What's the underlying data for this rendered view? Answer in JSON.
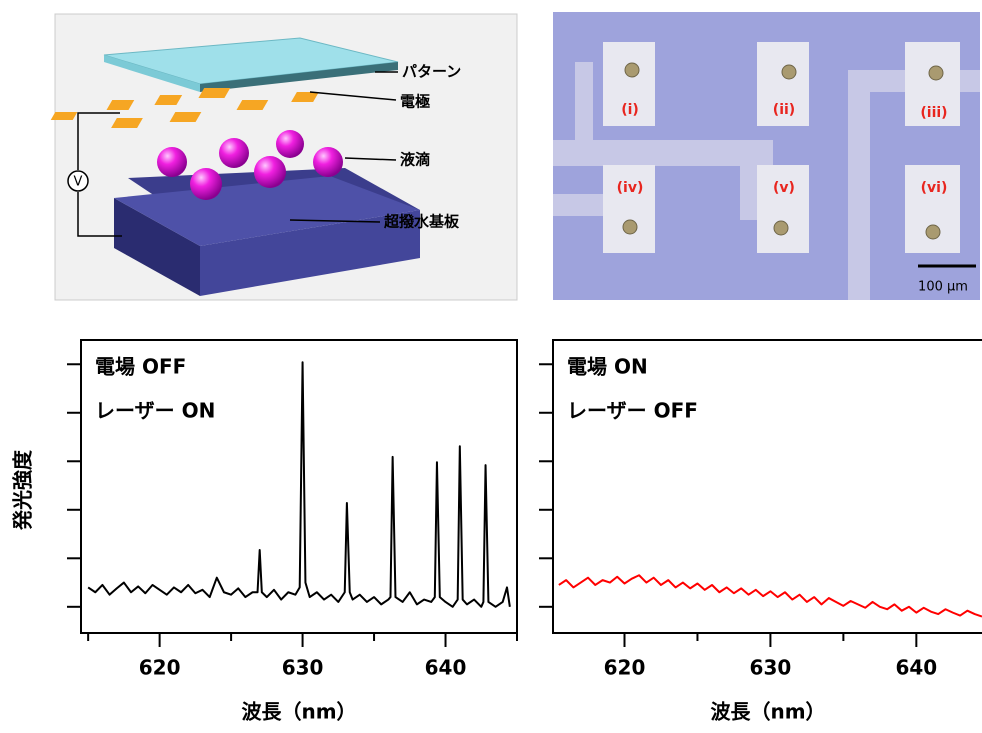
{
  "diagram": {
    "labels": [
      "パターン",
      "電極",
      "液滴",
      "超撥水基板"
    ],
    "voltage": "V"
  },
  "micrograph": {
    "spots": [
      "(i)",
      "(ii)",
      "(iii)",
      "(iv)",
      "(v)",
      "(vi)"
    ],
    "scale_bar": "100 μm"
  },
  "chart_data": [
    {
      "type": "line",
      "annotations": [
        "電場 OFF",
        "レーザー ON"
      ],
      "ylabel": "発光強度",
      "xlabel": "波長（nm）",
      "xlim": [
        614.5,
        645
      ],
      "xticks": [
        620,
        630,
        640
      ],
      "xminorticks": [
        615,
        625,
        635,
        645
      ],
      "ylim": [
        0.46,
        6.5
      ],
      "yticks": [
        1,
        2,
        3,
        4,
        5,
        6
      ],
      "x": [
        615,
        615.5,
        616,
        616.5,
        617,
        617.5,
        618,
        618.5,
        619,
        619.5,
        620,
        620.5,
        621,
        621.5,
        622,
        622.5,
        623,
        623.5,
        624,
        624.5,
        625,
        625.5,
        626,
        626.5,
        626.85,
        627,
        627.15,
        627.5,
        628,
        628.5,
        629,
        629.5,
        629.8,
        630,
        630.2,
        630.5,
        631,
        631.5,
        632,
        632.5,
        632.95,
        633.1,
        633.3,
        633.5,
        634,
        634.5,
        635,
        635.5,
        636,
        636.15,
        636.3,
        636.5,
        637,
        637.5,
        638,
        638.5,
        639,
        639.25,
        639.4,
        639.6,
        640,
        640.5,
        640.85,
        641,
        641.2,
        641.5,
        642,
        642.5,
        642.65,
        642.8,
        643,
        643.5,
        644,
        644.3,
        644.5
      ],
      "series": [
        {
          "color": "#000000",
          "values": [
            1.4,
            1.3,
            1.45,
            1.25,
            1.38,
            1.5,
            1.3,
            1.42,
            1.28,
            1.45,
            1.35,
            1.25,
            1.4,
            1.3,
            1.45,
            1.28,
            1.35,
            1.2,
            1.6,
            1.3,
            1.25,
            1.38,
            1.2,
            1.3,
            1.3,
            2.17,
            1.3,
            1.2,
            1.35,
            1.15,
            1.3,
            1.25,
            1.4,
            6.04,
            1.5,
            1.2,
            1.3,
            1.15,
            1.25,
            1.1,
            1.3,
            3.14,
            1.3,
            1.15,
            1.25,
            1.1,
            1.2,
            1.05,
            1.15,
            1.2,
            4.09,
            1.2,
            1.1,
            1.3,
            1.05,
            1.15,
            1.1,
            1.2,
            3.98,
            1.2,
            1.1,
            1.0,
            1.15,
            4.31,
            1.15,
            1.05,
            1.15,
            1.0,
            1.1,
            3.92,
            1.1,
            1.0,
            1.1,
            1.4,
            1.0
          ]
        }
      ]
    },
    {
      "type": "line",
      "annotations": [
        "電場 ON",
        "レーザー OFF"
      ],
      "xlabel": "波長（nm）",
      "xlim": [
        615.1,
        644.5
      ],
      "xticks": [
        620,
        630,
        640
      ],
      "xminorticks": [
        625,
        635
      ],
      "ylim": [
        0.46,
        6.5
      ],
      "yticks": [
        1,
        2,
        3,
        4,
        5,
        6
      ],
      "x": [
        615.5,
        616,
        616.5,
        617,
        617.5,
        618,
        618.5,
        619,
        619.5,
        620,
        620.5,
        621,
        621.5,
        622,
        622.5,
        623,
        623.5,
        624,
        624.5,
        625,
        625.5,
        626,
        626.5,
        627,
        627.5,
        628,
        628.5,
        629,
        629.5,
        630,
        630.5,
        631,
        631.5,
        632,
        632.5,
        633,
        633.5,
        634,
        634.5,
        635,
        635.5,
        636,
        636.5,
        637,
        637.5,
        638,
        638.5,
        639,
        639.5,
        640,
        640.5,
        641,
        641.5,
        642,
        642.5,
        643,
        643.5,
        644,
        644.5
      ],
      "series": [
        {
          "color": "#ff0000",
          "values": [
            1.45,
            1.55,
            1.4,
            1.5,
            1.6,
            1.45,
            1.55,
            1.5,
            1.62,
            1.48,
            1.58,
            1.65,
            1.5,
            1.6,
            1.45,
            1.55,
            1.4,
            1.5,
            1.38,
            1.48,
            1.35,
            1.45,
            1.3,
            1.4,
            1.28,
            1.38,
            1.25,
            1.35,
            1.22,
            1.32,
            1.2,
            1.3,
            1.15,
            1.25,
            1.1,
            1.2,
            1.05,
            1.18,
            1.1,
            1.02,
            1.12,
            1.05,
            0.98,
            1.1,
            1.0,
            0.95,
            1.05,
            0.92,
            1.0,
            0.88,
            0.98,
            0.9,
            0.85,
            0.95,
            0.88,
            0.82,
            0.92,
            0.85,
            0.8
          ]
        }
      ]
    }
  ]
}
